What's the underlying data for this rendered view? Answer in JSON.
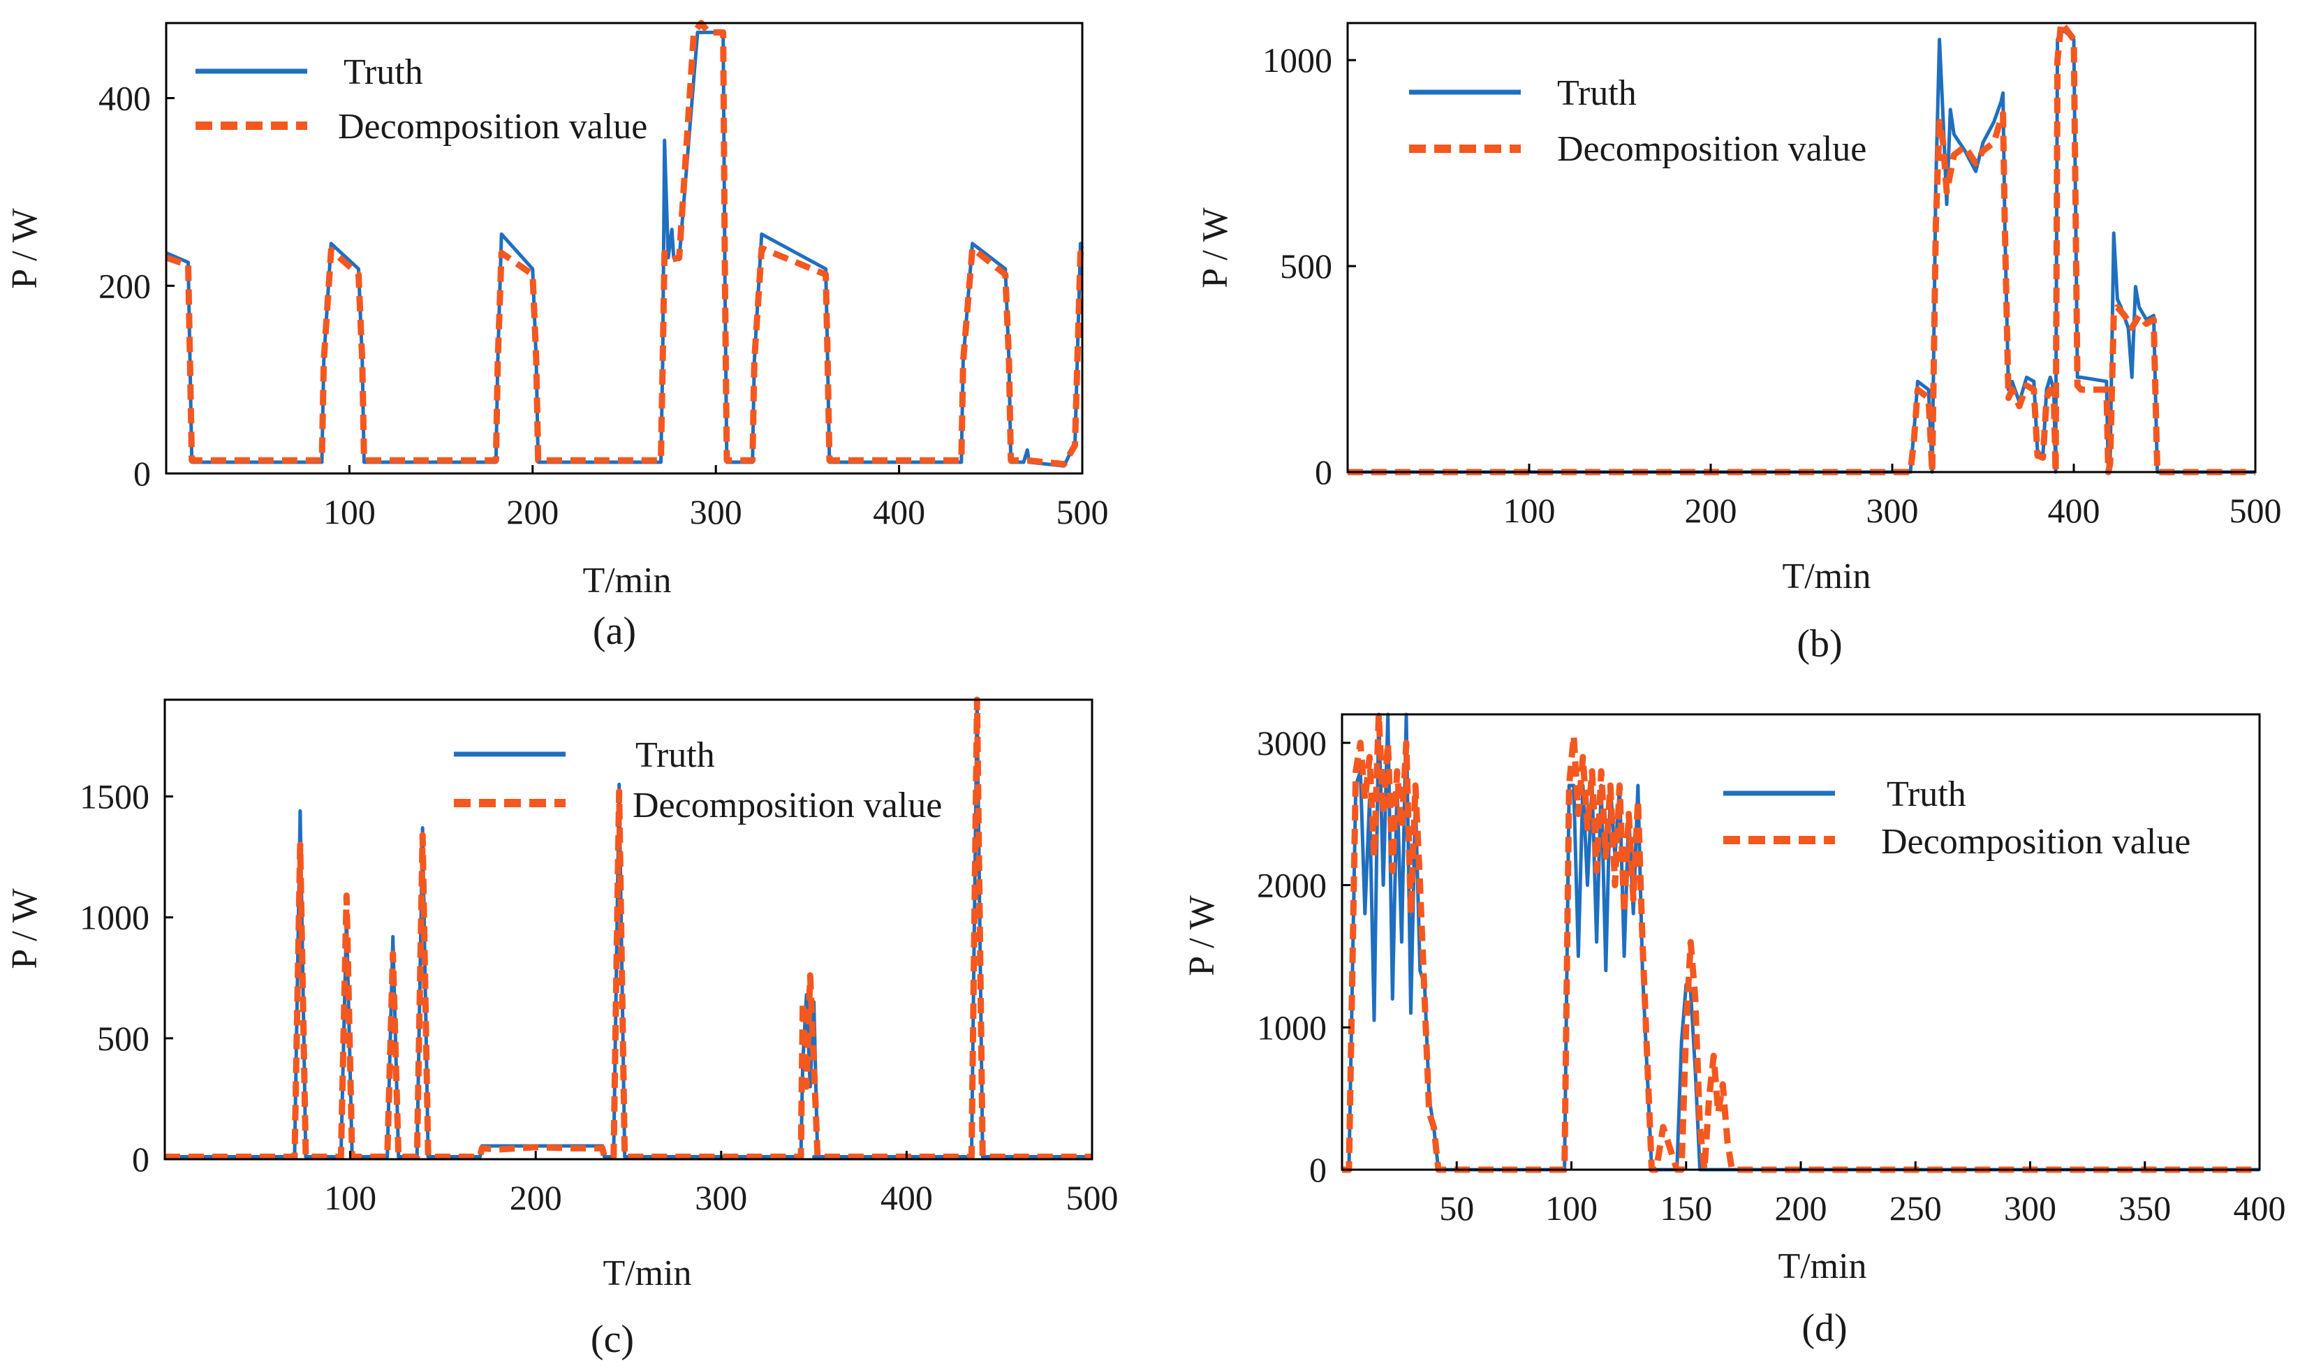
{
  "figure": {
    "legend": {
      "truth_label": "Truth",
      "decomp_label": "Decomposition value"
    },
    "colors": {
      "truth": "#1f6fbf",
      "decomposition": "#f4581f",
      "axis": "#000000"
    }
  },
  "chart_data": [
    {
      "id": "a",
      "type": "line",
      "caption": "(a)",
      "xlabel": "T/min",
      "ylabel": "P / W",
      "xlim": [
        0,
        500
      ],
      "ylim": [
        0,
        480
      ],
      "xticks": [
        100,
        200,
        300,
        400,
        500
      ],
      "yticks": [
        0,
        200,
        400
      ],
      "legend_position": "top-left",
      "series": [
        {
          "name": "Truth",
          "style": "solid",
          "x": [
            0,
            12,
            13,
            14,
            85,
            86,
            90,
            105,
            107,
            108,
            180,
            181,
            183,
            200,
            202,
            203,
            270,
            271,
            272,
            274,
            276,
            277,
            280,
            290,
            291,
            304,
            305,
            306,
            320,
            321,
            325,
            360,
            361,
            362,
            434,
            435,
            440,
            458,
            460,
            461,
            468,
            470,
            471,
            490,
            493,
            496,
            499,
            500
          ],
          "y": [
            235,
            225,
            120,
            12,
            12,
            120,
            245,
            218,
            120,
            12,
            12,
            120,
            255,
            218,
            120,
            12,
            12,
            120,
            355,
            230,
            260,
            230,
            228,
            470,
            470,
            470,
            200,
            12,
            12,
            120,
            255,
            218,
            120,
            12,
            12,
            120,
            245,
            218,
            120,
            12,
            12,
            25,
            12,
            8,
            20,
            30,
            245,
            240
          ]
        },
        {
          "name": "Decomposition value",
          "style": "dashed",
          "x": [
            0,
            12,
            13,
            14,
            85,
            86,
            90,
            105,
            107,
            108,
            180,
            181,
            183,
            200,
            202,
            203,
            270,
            271,
            272,
            276,
            280,
            288,
            292,
            296,
            304,
            305,
            306,
            320,
            321,
            325,
            360,
            361,
            362,
            434,
            435,
            440,
            458,
            460,
            461,
            470,
            490,
            496,
            499,
            500
          ],
          "y": [
            230,
            222,
            120,
            14,
            14,
            120,
            238,
            212,
            120,
            14,
            14,
            120,
            235,
            212,
            120,
            14,
            14,
            120,
            235,
            228,
            230,
            470,
            480,
            470,
            470,
            200,
            14,
            14,
            120,
            240,
            212,
            120,
            14,
            14,
            120,
            240,
            212,
            120,
            14,
            14,
            10,
            30,
            235,
            230
          ]
        }
      ]
    },
    {
      "id": "b",
      "type": "line",
      "caption": "(b)",
      "xlabel": "T/min",
      "ylabel": "P / W",
      "xlim": [
        0,
        500
      ],
      "ylim": [
        0,
        1090
      ],
      "xticks": [
        100,
        200,
        300,
        400,
        500
      ],
      "yticks": [
        0,
        500,
        1000
      ],
      "legend_position": "top-left",
      "series": [
        {
          "name": "Truth",
          "style": "solid",
          "x": [
            0,
            310,
            312,
            314,
            320,
            322,
            324,
            326,
            328,
            330,
            332,
            334,
            340,
            346,
            350,
            356,
            360,
            361,
            362,
            364,
            366,
            370,
            374,
            378,
            380,
            383,
            385,
            387,
            389,
            390,
            391,
            393,
            395,
            400,
            402,
            404,
            418,
            419,
            420,
            422,
            424,
            426,
            430,
            432,
            434,
            436,
            440,
            444,
            446,
            450,
            455,
            470,
            500
          ],
          "y": [
            0,
            0,
            100,
            220,
            200,
            0,
            700,
            1050,
            860,
            650,
            880,
            820,
            780,
            730,
            800,
            850,
            900,
            920,
            600,
            200,
            220,
            170,
            230,
            220,
            50,
            40,
            200,
            230,
            200,
            0,
            1050,
            1070,
            1070,
            1050,
            230,
            230,
            220,
            0,
            20,
            580,
            420,
            400,
            350,
            230,
            450,
            400,
            370,
            380,
            0,
            0,
            0,
            0,
            0
          ]
        },
        {
          "name": "Decomposition value",
          "style": "dashed",
          "x": [
            0,
            310,
            312,
            314,
            320,
            322,
            324,
            326,
            328,
            330,
            334,
            340,
            346,
            350,
            356,
            360,
            361,
            362,
            364,
            366,
            370,
            374,
            378,
            380,
            383,
            385,
            387,
            389,
            390,
            391,
            393,
            395,
            400,
            402,
            404,
            418,
            419,
            420,
            422,
            424,
            428,
            432,
            436,
            440,
            444,
            446,
            450,
            455,
            470,
            500
          ],
          "y": [
            0,
            0,
            80,
            200,
            180,
            0,
            600,
            850,
            800,
            680,
            770,
            790,
            750,
            780,
            800,
            860,
            870,
            600,
            180,
            200,
            160,
            210,
            200,
            40,
            35,
            180,
            200,
            180,
            0,
            1000,
            1090,
            1080,
            1050,
            210,
            200,
            200,
            0,
            20,
            380,
            400,
            380,
            350,
            380,
            360,
            370,
            0,
            0,
            0,
            0,
            0
          ]
        }
      ]
    },
    {
      "id": "c",
      "type": "line",
      "caption": "(c)",
      "xlabel": "T/min",
      "ylabel": "P / W",
      "xlim": [
        0,
        500
      ],
      "ylim": [
        0,
        1900
      ],
      "xticks": [
        100,
        200,
        300,
        400,
        500
      ],
      "yticks": [
        0,
        500,
        1000,
        1500
      ],
      "legend_position": "top-center",
      "series": [
        {
          "name": "Truth",
          "style": "solid",
          "x": [
            0,
            70,
            73,
            76,
            95,
            98,
            101,
            120,
            123,
            126,
            136,
            139,
            142,
            170,
            171,
            172,
            236,
            237,
            238,
            242,
            245,
            248,
            343,
            344,
            346,
            348,
            350,
            352,
            353,
            350,
            354,
            435,
            438,
            441,
            500
          ],
          "y": [
            10,
            10,
            1440,
            10,
            10,
            1000,
            10,
            10,
            920,
            10,
            10,
            1370,
            10,
            10,
            55,
            55,
            55,
            10,
            10,
            10,
            1550,
            10,
            10,
            400,
            680,
            300,
            650,
            10,
            10,
            10,
            10,
            10,
            1900,
            10,
            10
          ]
        },
        {
          "name": "Decomposition value",
          "style": "dashed",
          "x": [
            0,
            70,
            73,
            76,
            95,
            98,
            101,
            120,
            123,
            126,
            136,
            139,
            142,
            170,
            171,
            180,
            200,
            220,
            236,
            237,
            238,
            242,
            245,
            248,
            343,
            344,
            346,
            348,
            350,
            352,
            353,
            354,
            435,
            438,
            441,
            500
          ],
          "y": [
            10,
            10,
            1300,
            10,
            10,
            1090,
            10,
            10,
            850,
            10,
            10,
            1340,
            10,
            10,
            45,
            40,
            50,
            45,
            45,
            10,
            10,
            10,
            1520,
            10,
            10,
            650,
            300,
            760,
            400,
            10,
            10,
            10,
            10,
            1900,
            10,
            10
          ]
        }
      ]
    },
    {
      "id": "d",
      "type": "line",
      "caption": "(d)",
      "xlabel": "T/min",
      "ylabel": "P / W",
      "xlim": [
        0,
        400
      ],
      "ylim": [
        0,
        3200
      ],
      "xticks": [
        50,
        100,
        150,
        200,
        250,
        300,
        350,
        400
      ],
      "yticks": [
        0,
        1000,
        2000,
        3000
      ],
      "legend_position": "top-right",
      "series": [
        {
          "name": "Truth",
          "style": "solid",
          "x": [
            0,
            3,
            6,
            8,
            10,
            12,
            14,
            16,
            18,
            20,
            22,
            24,
            26,
            28,
            30,
            32,
            34,
            36,
            38,
            40,
            42,
            45,
            95,
            97,
            99,
            101,
            103,
            105,
            107,
            109,
            111,
            113,
            115,
            117,
            119,
            121,
            123,
            125,
            127,
            129,
            131,
            133,
            135,
            137,
            146,
            148,
            150,
            152,
            154,
            156,
            158,
            160,
            170,
            400
          ],
          "y": [
            0,
            0,
            2700,
            2800,
            1800,
            2600,
            1050,
            3200,
            2000,
            3200,
            1200,
            2700,
            1600,
            3200,
            1100,
            2600,
            1400,
            1300,
            500,
            300,
            0,
            0,
            0,
            0,
            2700,
            2700,
            1500,
            2700,
            2000,
            2700,
            1600,
            2700,
            1400,
            2700,
            2200,
            2700,
            1500,
            2500,
            1800,
            2700,
            1400,
            700,
            0,
            0,
            0,
            900,
            1300,
            1250,
            700,
            0,
            0,
            0,
            0,
            0
          ]
        },
        {
          "name": "Decomposition value",
          "style": "dashed",
          "x": [
            0,
            3,
            6,
            8,
            10,
            12,
            14,
            16,
            18,
            20,
            22,
            24,
            26,
            28,
            30,
            32,
            34,
            36,
            38,
            40,
            42,
            45,
            95,
            97,
            99,
            101,
            103,
            105,
            107,
            109,
            111,
            113,
            115,
            117,
            119,
            121,
            123,
            125,
            127,
            129,
            131,
            133,
            135,
            137,
            140,
            146,
            148,
            150,
            152,
            154,
            156,
            158,
            160,
            162,
            164,
            166,
            168,
            170,
            400
          ],
          "y": [
            0,
            0,
            2800,
            3000,
            2600,
            2900,
            2200,
            3200,
            2500,
            3000,
            2100,
            2800,
            2400,
            3000,
            1800,
            2700,
            2000,
            1200,
            400,
            300,
            0,
            0,
            0,
            0,
            2700,
            3050,
            2500,
            2900,
            2400,
            2800,
            2100,
            2800,
            2200,
            2700,
            2000,
            2700,
            1800,
            2500,
            1900,
            2600,
            1600,
            800,
            0,
            0,
            300,
            0,
            0,
            1000,
            1600,
            1200,
            300,
            0,
            500,
            800,
            400,
            600,
            200,
            0,
            0
          ]
        }
      ]
    }
  ]
}
